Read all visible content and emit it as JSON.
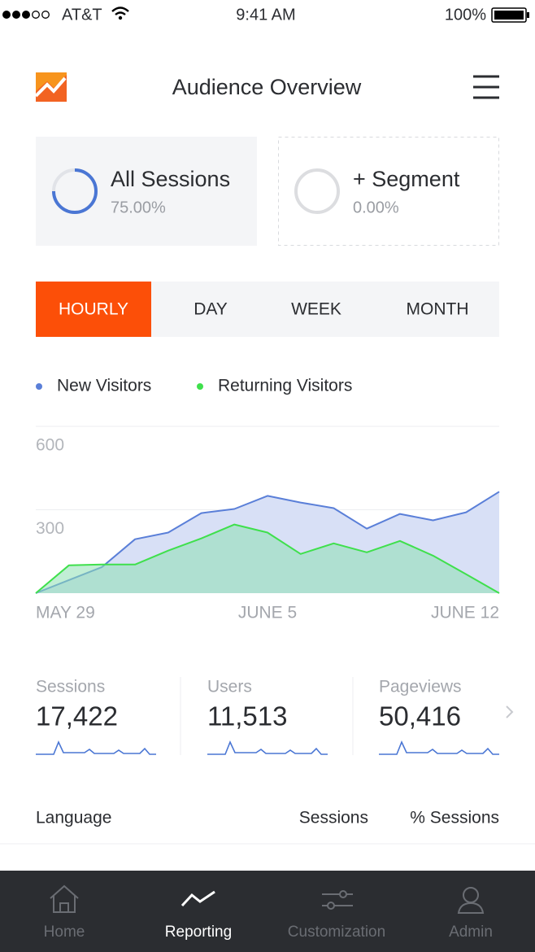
{
  "status_bar": {
    "carrier": "AT&T",
    "time": "9:41 AM",
    "battery": "100%"
  },
  "header": {
    "title": "Audience Overview"
  },
  "segments": [
    {
      "title": "All Sessions",
      "value": "75.00%"
    },
    {
      "title": "+ Segment",
      "value": "0.00%"
    }
  ],
  "tabs": {
    "items": [
      "HOURLY",
      "DAY",
      "WEEK",
      "MONTH"
    ],
    "active": 0
  },
  "chart_data": {
    "type": "area",
    "categories": [
      "MAY 29",
      null,
      null,
      null,
      null,
      null,
      null,
      "JUNE 5",
      null,
      null,
      null,
      null,
      null,
      null,
      "JUNE 12"
    ],
    "series": [
      {
        "name": "New Visitors",
        "color": "#5a7fd8",
        "values": [
          0,
          47,
          94,
          194,
          218,
          288,
          303,
          350,
          326,
          306,
          232,
          285,
          262,
          291,
          365
        ]
      },
      {
        "name": "Returning Visitors",
        "color": "#3fe04c",
        "values": [
          0,
          100,
          103,
          103,
          153,
          197,
          247,
          218,
          141,
          179,
          147,
          188,
          135,
          68,
          0
        ]
      }
    ],
    "ylim": [
      0,
      600
    ],
    "yticks": [
      300,
      600
    ],
    "grid": true
  },
  "stats": [
    {
      "label": "Sessions",
      "value": "17,422"
    },
    {
      "label": "Users",
      "value": "11,513"
    },
    {
      "label": "Pageviews",
      "value": "50,416"
    }
  ],
  "table": {
    "columns": [
      "Language",
      "Sessions",
      "% Sessions"
    ]
  },
  "tab_bar": {
    "items": [
      "Home",
      "Reporting",
      "Customization",
      "Admin"
    ],
    "active": 1
  }
}
